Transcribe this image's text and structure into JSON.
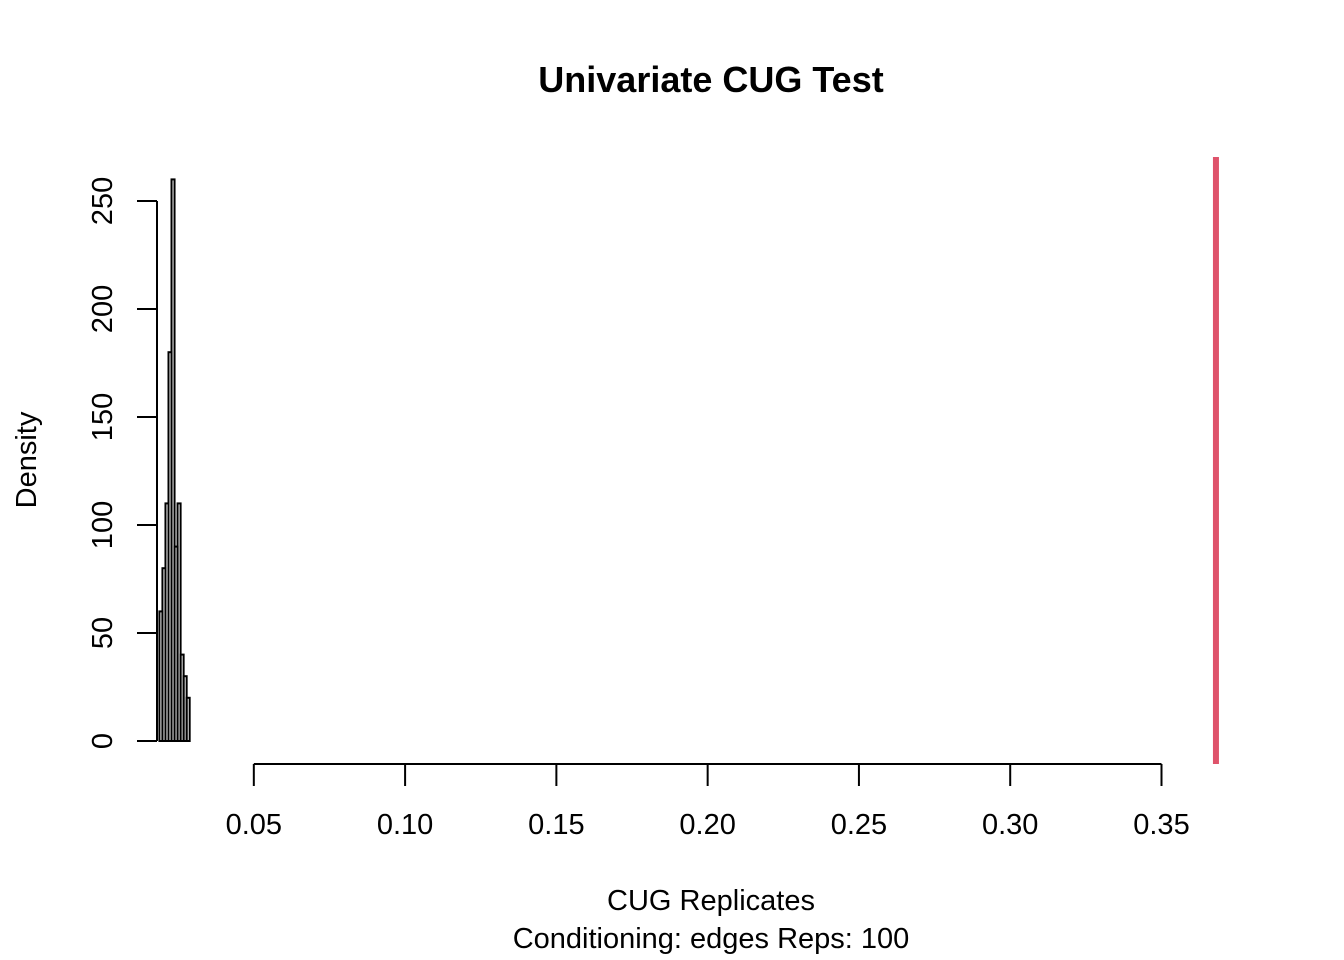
{
  "chart_data": {
    "type": "bar",
    "title": "Univariate CUG Test",
    "xlabel": "CUG Replicates",
    "subtitle": "Conditioning: edges Reps: 100",
    "ylabel": "Density",
    "xlim": [
      0.018,
      0.37
    ],
    "ylim": [
      0,
      260
    ],
    "x_ticks": [
      "0.05",
      "0.10",
      "0.15",
      "0.20",
      "0.25",
      "0.30",
      "0.35"
    ],
    "x_tick_values": [
      0.05,
      0.1,
      0.15,
      0.2,
      0.25,
      0.3,
      0.35
    ],
    "y_ticks": [
      "0",
      "50",
      "100",
      "150",
      "200",
      "250"
    ],
    "y_tick_values": [
      0,
      50,
      100,
      150,
      200,
      250
    ],
    "bin_width": 0.001,
    "bins": [
      {
        "start": 0.0188,
        "density": 60
      },
      {
        "start": 0.0198,
        "density": 80
      },
      {
        "start": 0.0208,
        "density": 110
      },
      {
        "start": 0.0218,
        "density": 180
      },
      {
        "start": 0.0228,
        "density": 260
      },
      {
        "start": 0.0238,
        "density": 90
      },
      {
        "start": 0.0248,
        "density": 110
      },
      {
        "start": 0.0258,
        "density": 40
      },
      {
        "start": 0.0268,
        "density": 30
      },
      {
        "start": 0.0278,
        "density": 20
      }
    ],
    "observed_value": 0.368,
    "observed_color": "#df536b",
    "bar_color": "#000000"
  }
}
